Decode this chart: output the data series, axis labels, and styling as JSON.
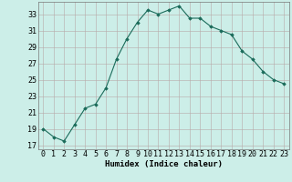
{
  "x": [
    0,
    1,
    2,
    3,
    4,
    5,
    6,
    7,
    8,
    9,
    10,
    11,
    12,
    13,
    14,
    15,
    16,
    17,
    18,
    19,
    20,
    21,
    22,
    23
  ],
  "y": [
    19.0,
    18.0,
    17.5,
    19.5,
    21.5,
    22.0,
    24.0,
    27.5,
    30.0,
    32.0,
    33.5,
    33.0,
    33.5,
    34.0,
    32.5,
    32.5,
    31.5,
    31.0,
    30.5,
    28.5,
    27.5,
    26.0,
    25.0,
    24.5
  ],
  "line_color": "#1a6b5a",
  "marker": "D",
  "marker_size": 1.8,
  "line_width": 0.8,
  "bg_color": "#cceee8",
  "grid_color": "#b8a8a8",
  "xlabel": "Humidex (Indice chaleur)",
  "xlim": [
    -0.5,
    23.5
  ],
  "ylim": [
    16.5,
    34.5
  ],
  "yticks": [
    17,
    19,
    21,
    23,
    25,
    27,
    29,
    31,
    33
  ],
  "xticks": [
    0,
    1,
    2,
    3,
    4,
    5,
    6,
    7,
    8,
    9,
    10,
    11,
    12,
    13,
    14,
    15,
    16,
    17,
    18,
    19,
    20,
    21,
    22,
    23
  ],
  "xlabel_fontsize": 6.5,
  "tick_fontsize": 6.0
}
